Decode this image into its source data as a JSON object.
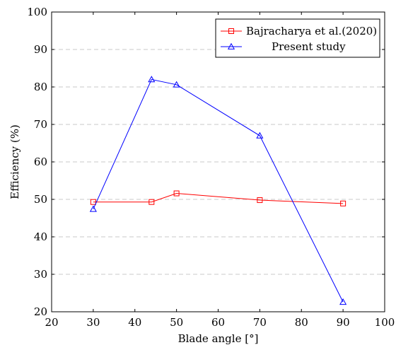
{
  "chart_data": {
    "type": "line",
    "xlabel": "Blade angle [°]",
    "ylabel": "Efficiency (%)",
    "xlim": [
      20,
      100
    ],
    "ylim": [
      20,
      100
    ],
    "xticks": [
      20,
      30,
      40,
      50,
      60,
      70,
      80,
      90,
      100
    ],
    "yticks": [
      20,
      30,
      40,
      50,
      60,
      70,
      80,
      90,
      100
    ],
    "grid": "horizontal dashed",
    "legend_position": "top-right",
    "series": [
      {
        "name": "Bajracharya et al.(2020)",
        "color": "#ff0000",
        "marker": "square",
        "x": [
          30,
          44,
          50,
          70,
          90
        ],
        "y": [
          49.3,
          49.3,
          51.6,
          49.8,
          48.9
        ]
      },
      {
        "name": "Present study",
        "color": "#0000ff",
        "marker": "triangle",
        "x": [
          30,
          44,
          50,
          70,
          90
        ],
        "y": [
          47.4,
          82.0,
          80.6,
          67.0,
          22.6
        ]
      }
    ]
  }
}
